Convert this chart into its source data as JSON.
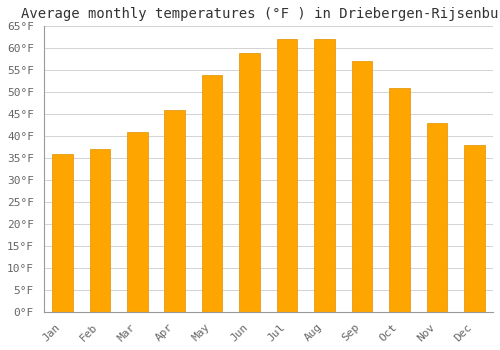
{
  "title": "Average monthly temperatures (°F ) in Driebergen-Rijsenburg",
  "months": [
    "Jan",
    "Feb",
    "Mar",
    "Apr",
    "May",
    "Jun",
    "Jul",
    "Aug",
    "Sep",
    "Oct",
    "Nov",
    "Dec"
  ],
  "values": [
    36,
    37,
    41,
    46,
    54,
    59,
    62,
    62,
    57,
    51,
    43,
    38
  ],
  "bar_color": "#FFA500",
  "bar_edge_color": "#E09000",
  "background_color": "#FFFFFF",
  "plot_bg_color": "#FFFFFF",
  "grid_color": "#CCCCCC",
  "ylim": [
    0,
    65
  ],
  "yticks": [
    0,
    5,
    10,
    15,
    20,
    25,
    30,
    35,
    40,
    45,
    50,
    55,
    60,
    65
  ],
  "title_fontsize": 10,
  "tick_fontsize": 8,
  "font_family": "monospace",
  "bar_width": 0.55
}
